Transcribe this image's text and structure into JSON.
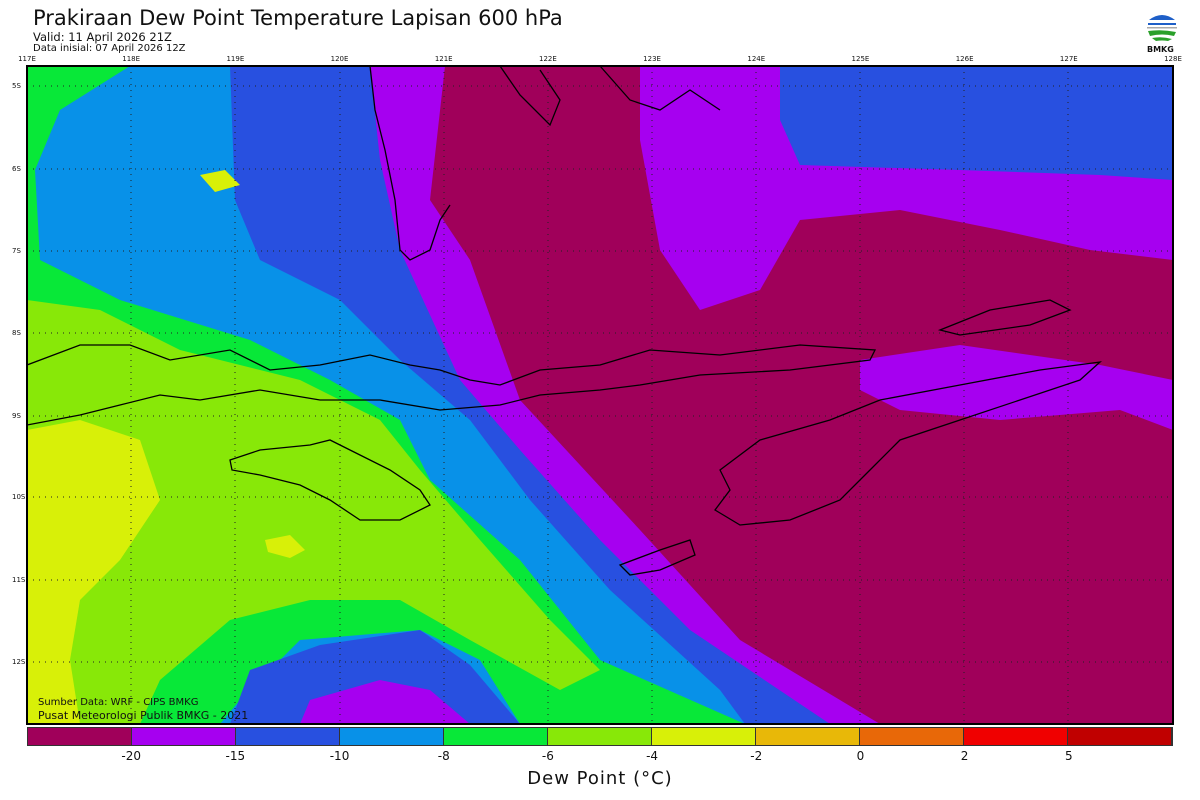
{
  "header": {
    "title": "Prakiraan Dew Point Temperature Lapisan 600 hPa",
    "valid": "Valid: 11 April 2026 21Z",
    "init": "Data inisial: 07 April 2026 12Z",
    "logo_text": "BMKG"
  },
  "map": {
    "lon_labels": [
      "117E",
      "118E",
      "119E",
      "120E",
      "121E",
      "122E",
      "123E",
      "124E",
      "125E",
      "126E",
      "127E",
      "128E"
    ],
    "lat_labels": [
      "5S",
      "6S",
      "7S",
      "8S",
      "9S",
      "10S",
      "11S",
      "12S"
    ],
    "source": "Sumber Data: WRF - CIPS BMKG",
    "credit": "Pusat Meteorologi Publik BMKG - 2021"
  },
  "colorbar": {
    "label": "Dew Point (°C)",
    "ticks": [
      "-20",
      "-15",
      "-10",
      "-8",
      "-6",
      "-4",
      "-2",
      "0",
      "2",
      "5"
    ],
    "colors": [
      "#a0005a",
      "#a600f0",
      "#2850e0",
      "#0891e8",
      "#08e838",
      "#88e808",
      "#d8f008",
      "#e8b808",
      "#e86808",
      "#f00000",
      "#c00000"
    ]
  }
}
